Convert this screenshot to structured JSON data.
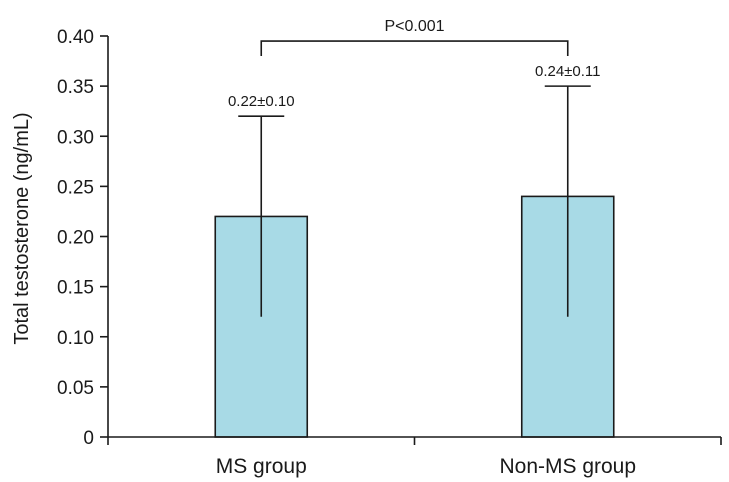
{
  "chart_data": {
    "type": "bar",
    "categories": [
      "MS group",
      "Non-MS group"
    ],
    "values": [
      0.22,
      0.24
    ],
    "error_low": [
      0.12,
      0.12
    ],
    "error_high": [
      0.32,
      0.35
    ],
    "data_labels": [
      "0.22±0.10",
      "0.24±0.11"
    ],
    "title": "",
    "xlabel": "",
    "ylabel": "Total testosterone (ng/mL)",
    "ylim": [
      0,
      0.4
    ],
    "yticks": [
      0,
      0.05,
      0.1,
      0.15,
      0.2,
      0.25,
      0.3,
      0.35,
      0.4
    ],
    "ytick_labels": [
      "0",
      "0.05",
      "0.10",
      "0.15",
      "0.20",
      "0.25",
      "0.30",
      "0.35",
      "0.40"
    ],
    "grid": false,
    "legend": "none",
    "bar_color": "#a8dae6",
    "annotation": {
      "text": "P<0.001",
      "y": 0.395,
      "drop_to": 0.38
    }
  }
}
